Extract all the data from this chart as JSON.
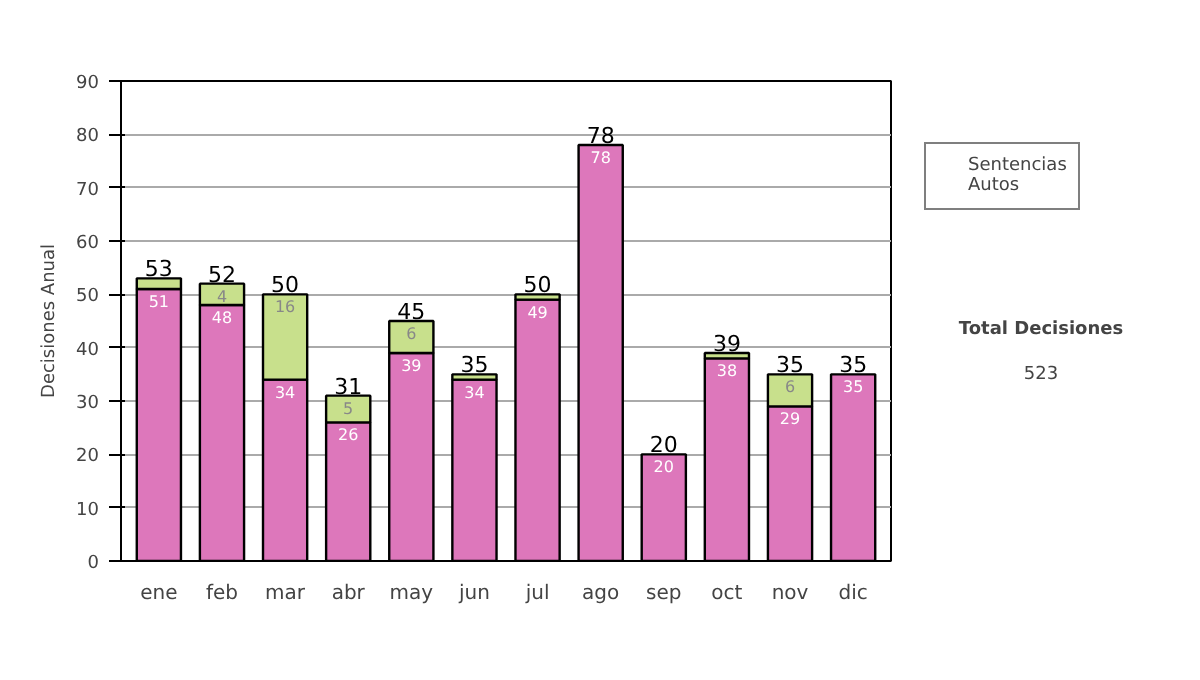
{
  "chart_data": {
    "type": "bar",
    "stacked": true,
    "ylabel": "Decisiones Anual",
    "categories": [
      "ene",
      "feb",
      "mar",
      "abr",
      "may",
      "jun",
      "jul",
      "ago",
      "sep",
      "oct",
      "nov",
      "dic"
    ],
    "series": [
      {
        "name": "Sentencias",
        "color": "#dd77bb",
        "values": [
          51,
          48,
          34,
          26,
          39,
          34,
          49,
          78,
          20,
          38,
          29,
          35
        ],
        "value_labels": [
          "51",
          "48",
          "34",
          "26",
          "39",
          "34",
          "49",
          "78",
          "20",
          "38",
          "29",
          "35"
        ]
      },
      {
        "name": "Autos",
        "color": "#c8e08c",
        "values": [
          2,
          4,
          16,
          5,
          6,
          1,
          1,
          0,
          0,
          1,
          6,
          0
        ],
        "value_labels": [
          null,
          "4",
          "16",
          "5",
          "6",
          null,
          null,
          null,
          null,
          null,
          "6",
          null
        ]
      }
    ],
    "totals": [
      "53",
      "52",
      "50",
      "31",
      "45",
      "35",
      "50",
      "78",
      "20",
      "39",
      "35",
      "35"
    ],
    "ylim": [
      0,
      90
    ],
    "yticks": [
      0,
      10,
      20,
      30,
      40,
      50,
      60,
      70,
      80,
      90
    ],
    "grid": "y",
    "legend": "right",
    "annotations": [
      "Total Decisiones",
      "523"
    ]
  }
}
